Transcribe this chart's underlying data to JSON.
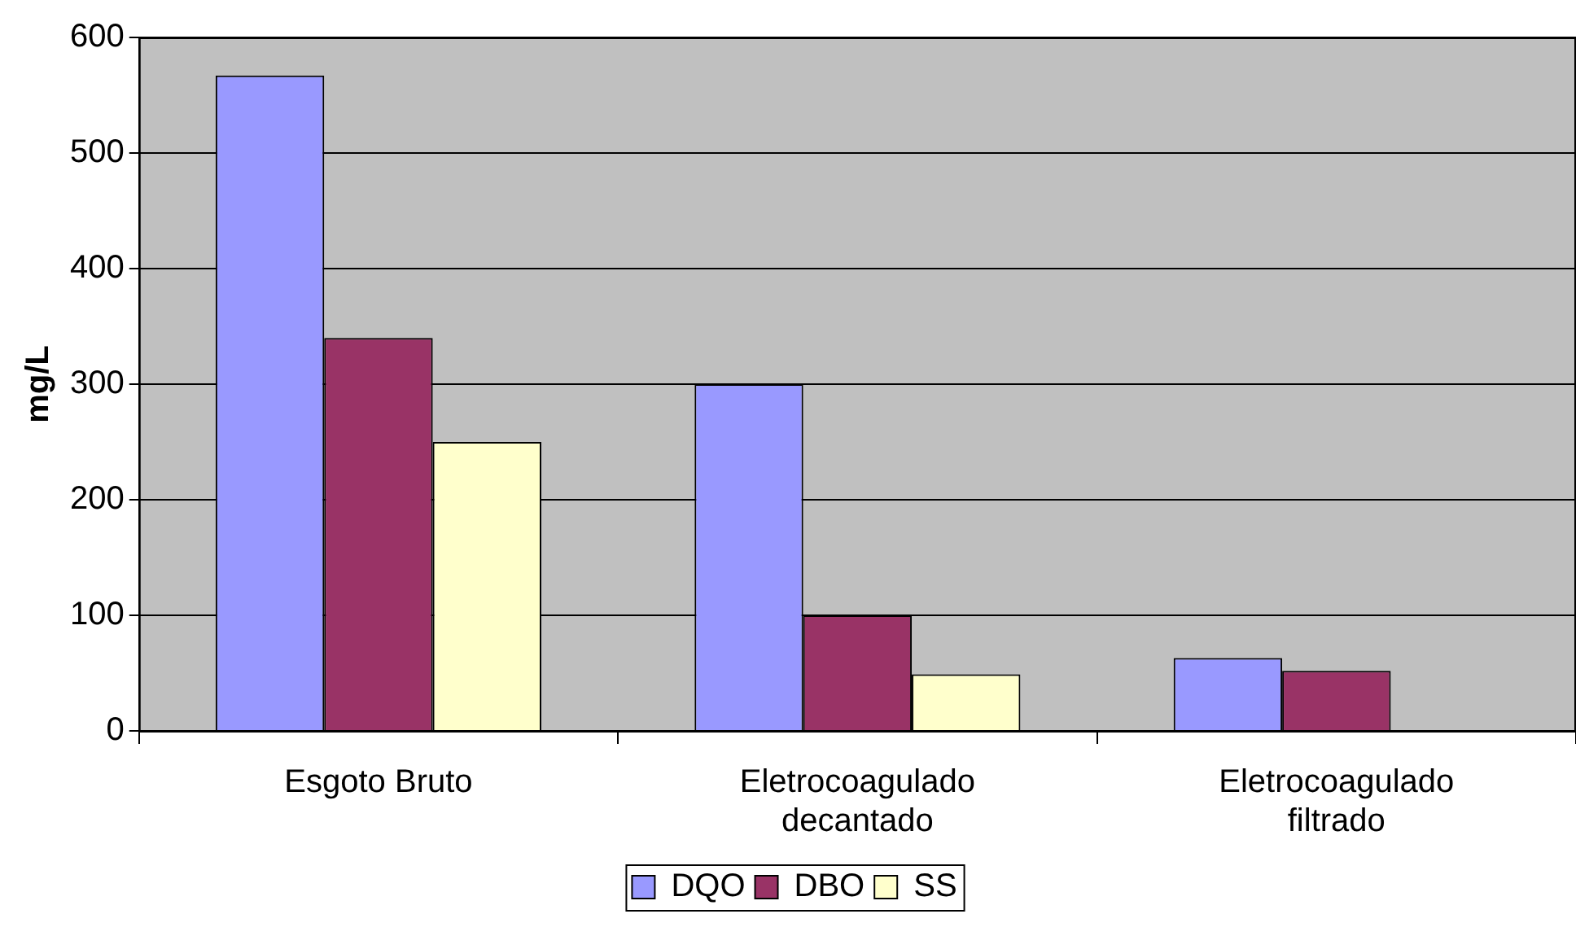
{
  "chart_data": {
    "type": "bar",
    "ylabel": "mg/L",
    "categories": [
      "Esgoto Bruto",
      "Eletrocoagulado decantado",
      "Eletrocoagulado filtrado"
    ],
    "series": [
      {
        "name": "DQO",
        "color": "#9999ff",
        "values": [
          567,
          300,
          63
        ]
      },
      {
        "name": "DBO",
        "color": "#993366",
        "values": [
          340,
          100,
          52
        ]
      },
      {
        "name": "SS",
        "color": "#ffffcc",
        "values": [
          250,
          49,
          null
        ]
      }
    ],
    "ylim": [
      0,
      600
    ],
    "yticks": [
      0,
      100,
      200,
      300,
      400,
      500,
      600
    ],
    "grid": "y",
    "legend": "bottom"
  }
}
